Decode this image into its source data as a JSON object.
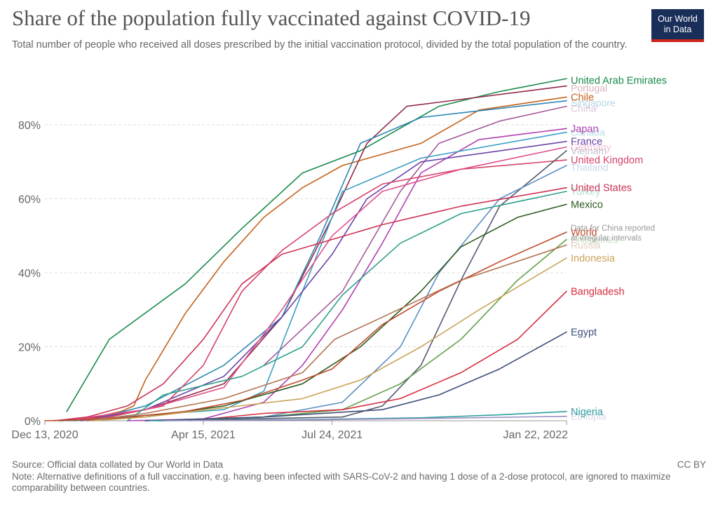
{
  "header": {
    "title": "Share of the population fully vaccinated against COVID-19",
    "subtitle": "Total number of people who received all doses prescribed by the initial vaccination protocol, divided by the total population of the country."
  },
  "logo": {
    "line1": "Our World",
    "line2": "in Data",
    "bg": "#1a2e5a",
    "accent": "#ce261e"
  },
  "footer": {
    "source": "Source: Official data collated by Our World in Data",
    "license": "CC BY",
    "note": "Note: Alternative definitions of a full vaccination, e.g. having been infected with SARS-CoV-2 and having 1 dose of a 2-dose protocol, are ignored to maximize comparability between countries."
  },
  "chart_data": {
    "type": "line",
    "x_axis": {
      "start": "2020-12-13",
      "end": "2022-01-22",
      "ticks": [
        "2020-12-13",
        "2021-04-15",
        "2021-07-24",
        "2022-01-22"
      ],
      "tick_labels": [
        "Dec 13, 2020",
        "Apr 15, 2021",
        "Jul 24, 2021",
        "Jan 22, 2022"
      ]
    },
    "y_axis": {
      "min": 0,
      "max": 80,
      "ticks": [
        0,
        20,
        40,
        60,
        80
      ],
      "tick_labels": [
        "0%",
        "20%",
        "40%",
        "60%",
        "80%"
      ],
      "unit": "%"
    },
    "grid": "horizontal dashed",
    "annotation": {
      "text_line1": "Data for China reported",
      "text_line2": "at irregular intervals",
      "at_value": 51
    },
    "series": [
      {
        "name": "United Arab Emirates",
        "color": "#1a8a4a",
        "label_y": 92,
        "labeled": true,
        "points": [
          [
            "2020-12-30",
            2.5
          ],
          [
            "2021-02-01",
            22
          ],
          [
            "2021-04-01",
            37
          ],
          [
            "2021-05-15",
            52
          ],
          [
            "2021-07-01",
            67
          ],
          [
            "2021-08-15",
            73
          ],
          [
            "2021-10-15",
            85
          ],
          [
            "2021-12-01",
            89
          ],
          [
            "2022-01-22",
            92.5
          ]
        ]
      },
      {
        "name": "Chile",
        "color": "#c4621b",
        "label_y": 87.5,
        "labeled": true,
        "points": [
          [
            "2021-01-15",
            0.5
          ],
          [
            "2021-02-10",
            2.5
          ],
          [
            "2021-02-20",
            4
          ],
          [
            "2021-03-01",
            11
          ],
          [
            "2021-04-01",
            29
          ],
          [
            "2021-05-01",
            43
          ],
          [
            "2021-06-01",
            55
          ],
          [
            "2021-07-01",
            63
          ],
          [
            "2021-08-01",
            69
          ],
          [
            "2021-10-01",
            75
          ],
          [
            "2021-11-15",
            84
          ],
          [
            "2022-01-22",
            87.5
          ]
        ]
      },
      {
        "name": "Portugal",
        "color": "#8f2b48",
        "label_y": 90,
        "labeled": false,
        "points": [
          [
            "2021-01-05",
            0
          ],
          [
            "2021-03-01",
            3
          ],
          [
            "2021-05-01",
            10
          ],
          [
            "2021-06-15",
            28
          ],
          [
            "2021-07-24",
            55
          ],
          [
            "2021-08-20",
            75
          ],
          [
            "2021-09-20",
            85
          ],
          [
            "2022-01-22",
            90.5
          ]
        ]
      },
      {
        "name": "Singapore",
        "color": "#2e86b0",
        "label_y": 86,
        "labeled": false,
        "points": [
          [
            "2021-01-15",
            0
          ],
          [
            "2021-03-01",
            4
          ],
          [
            "2021-05-01",
            15
          ],
          [
            "2021-06-15",
            28
          ],
          [
            "2021-07-15",
            50
          ],
          [
            "2021-08-15",
            75
          ],
          [
            "2021-10-01",
            82
          ],
          [
            "2022-01-22",
            86.5
          ]
        ]
      },
      {
        "name": "China",
        "color": "#a45a9a",
        "label_y": 84.5,
        "labeled": false,
        "points": [
          [
            "2021-06-01",
            15
          ],
          [
            "2021-08-01",
            35
          ],
          [
            "2021-09-15",
            62
          ],
          [
            "2021-10-15",
            75
          ],
          [
            "2021-12-01",
            81
          ],
          [
            "2022-01-22",
            85
          ]
        ]
      },
      {
        "name": "Japan",
        "color": "#b040b0",
        "label_y": 79,
        "labeled": true,
        "points": [
          [
            "2021-02-15",
            0
          ],
          [
            "2021-04-15",
            0.5
          ],
          [
            "2021-06-01",
            5
          ],
          [
            "2021-07-01",
            15
          ],
          [
            "2021-08-01",
            30
          ],
          [
            "2021-09-01",
            48
          ],
          [
            "2021-10-01",
            67
          ],
          [
            "2021-11-15",
            76
          ],
          [
            "2022-01-22",
            79
          ]
        ]
      },
      {
        "name": "Canada",
        "color": "#3c9fc4",
        "label_y": 78,
        "labeled": false,
        "points": [
          [
            "2021-01-01",
            0
          ],
          [
            "2021-05-01",
            3
          ],
          [
            "2021-06-01",
            8
          ],
          [
            "2021-07-01",
            35
          ],
          [
            "2021-08-01",
            62
          ],
          [
            "2021-10-01",
            71
          ],
          [
            "2022-01-22",
            78
          ]
        ]
      },
      {
        "name": "France",
        "color": "#6a44a8",
        "label_y": 75.5,
        "labeled": true,
        "points": [
          [
            "2021-01-10",
            0
          ],
          [
            "2021-03-01",
            3
          ],
          [
            "2021-05-01",
            12
          ],
          [
            "2021-06-15",
            28
          ],
          [
            "2021-07-24",
            45
          ],
          [
            "2021-08-20",
            60
          ],
          [
            "2021-10-01",
            70
          ],
          [
            "2022-01-22",
            75.5
          ]
        ]
      },
      {
        "name": "United Kingdom",
        "color": "#d6426a",
        "label_y": 70.5,
        "labeled": true,
        "points": [
          [
            "2020-12-20",
            0
          ],
          [
            "2021-02-01",
            1
          ],
          [
            "2021-03-15",
            4
          ],
          [
            "2021-04-15",
            15
          ],
          [
            "2021-05-15",
            35
          ],
          [
            "2021-06-15",
            46
          ],
          [
            "2021-07-24",
            56
          ],
          [
            "2021-09-01",
            64
          ],
          [
            "2021-11-01",
            68
          ],
          [
            "2022-01-22",
            70.5
          ]
        ]
      },
      {
        "name": "Vietnam",
        "color": "#555a6e",
        "label_y": 73,
        "labeled": false,
        "points": [
          [
            "2021-03-10",
            0
          ],
          [
            "2021-08-01",
            1
          ],
          [
            "2021-09-01",
            4
          ],
          [
            "2021-10-01",
            15
          ],
          [
            "2021-11-01",
            38
          ],
          [
            "2021-12-01",
            58
          ],
          [
            "2022-01-22",
            73
          ]
        ]
      },
      {
        "name": "Germany",
        "color": "#e04e8a",
        "label_y": 74,
        "labeled": false,
        "points": [
          [
            "2020-12-27",
            0
          ],
          [
            "2021-03-01",
            3
          ],
          [
            "2021-05-01",
            9
          ],
          [
            "2021-06-15",
            30
          ],
          [
            "2021-07-24",
            50
          ],
          [
            "2021-09-01",
            62
          ],
          [
            "2021-11-01",
            68
          ],
          [
            "2022-01-22",
            74
          ]
        ]
      },
      {
        "name": "Turkey",
        "color": "#2ea08c",
        "label_y": 62,
        "labeled": false,
        "points": [
          [
            "2021-02-15",
            0
          ],
          [
            "2021-03-15",
            7
          ],
          [
            "2021-05-15",
            12
          ],
          [
            "2021-07-01",
            20
          ],
          [
            "2021-08-01",
            34
          ],
          [
            "2021-09-15",
            48
          ],
          [
            "2021-11-01",
            56
          ],
          [
            "2022-01-22",
            62
          ]
        ]
      },
      {
        "name": "Thailand",
        "color": "#5b8fc4",
        "label_y": 68.5,
        "labeled": false,
        "points": [
          [
            "2021-03-01",
            0
          ],
          [
            "2021-06-01",
            1
          ],
          [
            "2021-08-01",
            5
          ],
          [
            "2021-09-15",
            20
          ],
          [
            "2021-10-15",
            40
          ],
          [
            "2021-12-01",
            60
          ],
          [
            "2022-01-22",
            69
          ]
        ]
      },
      {
        "name": "United States",
        "color": "#cc3355",
        "label_y": 63,
        "labeled": true,
        "points": [
          [
            "2020-12-20",
            0
          ],
          [
            "2021-01-15",
            1
          ],
          [
            "2021-02-15",
            4
          ],
          [
            "2021-03-15",
            10
          ],
          [
            "2021-04-15",
            22
          ],
          [
            "2021-05-15",
            37
          ],
          [
            "2021-06-15",
            45
          ],
          [
            "2021-07-24",
            49
          ],
          [
            "2021-09-01",
            53
          ],
          [
            "2021-11-01",
            58
          ],
          [
            "2022-01-22",
            63
          ]
        ]
      },
      {
        "name": "Mexico",
        "color": "#2d5a1f",
        "label_y": 58.5,
        "labeled": true,
        "points": [
          [
            "2020-12-24",
            0
          ],
          [
            "2021-03-01",
            1
          ],
          [
            "2021-05-01",
            4
          ],
          [
            "2021-07-01",
            10
          ],
          [
            "2021-08-15",
            20
          ],
          [
            "2021-10-01",
            35
          ],
          [
            "2021-11-01",
            47
          ],
          [
            "2021-12-15",
            55
          ],
          [
            "2022-01-22",
            58.5
          ]
        ]
      },
      {
        "name": "World",
        "color": "#bf4a2a",
        "label_y": 51,
        "labeled": true,
        "points": [
          [
            "2020-12-13",
            0
          ],
          [
            "2021-02-01",
            0.5
          ],
          [
            "2021-04-01",
            2.5
          ],
          [
            "2021-05-15",
            5.5
          ],
          [
            "2021-07-01",
            11
          ],
          [
            "2021-07-24",
            14
          ],
          [
            "2021-09-01",
            26
          ],
          [
            "2021-10-15",
            35
          ],
          [
            "2021-12-01",
            43
          ],
          [
            "2022-01-22",
            51
          ]
        ]
      },
      {
        "name": "Philippines",
        "color": "#63a04a",
        "label_y": 49,
        "labeled": false,
        "points": [
          [
            "2021-03-15",
            0
          ],
          [
            "2021-06-01",
            1
          ],
          [
            "2021-08-01",
            3
          ],
          [
            "2021-09-15",
            10
          ],
          [
            "2021-11-01",
            22
          ],
          [
            "2021-12-15",
            38
          ],
          [
            "2022-01-22",
            49
          ]
        ]
      },
      {
        "name": "Russia",
        "color": "#b07250",
        "label_y": 47.5,
        "labeled": false,
        "points": [
          [
            "2021-01-15",
            0
          ],
          [
            "2021-03-01",
            2
          ],
          [
            "2021-05-01",
            6
          ],
          [
            "2021-07-01",
            13
          ],
          [
            "2021-07-26",
            22
          ],
          [
            "2021-09-01",
            28
          ],
          [
            "2021-11-01",
            38
          ],
          [
            "2022-01-22",
            47.5
          ]
        ]
      },
      {
        "name": "Indonesia",
        "color": "#c9a45a",
        "label_y": 44,
        "labeled": true,
        "points": [
          [
            "2021-01-20",
            0
          ],
          [
            "2021-03-01",
            1
          ],
          [
            "2021-05-01",
            3.5
          ],
          [
            "2021-07-01",
            6
          ],
          [
            "2021-08-15",
            11
          ],
          [
            "2021-10-01",
            20
          ],
          [
            "2021-11-15",
            30
          ],
          [
            "2022-01-22",
            44
          ]
        ]
      },
      {
        "name": "Bangladesh",
        "color": "#d62d3c",
        "label_y": 35,
        "labeled": true,
        "points": [
          [
            "2021-04-05",
            0
          ],
          [
            "2021-06-01",
            2
          ],
          [
            "2021-08-01",
            3
          ],
          [
            "2021-09-15",
            6
          ],
          [
            "2021-11-01",
            13
          ],
          [
            "2021-12-15",
            22
          ],
          [
            "2022-01-22",
            35
          ]
        ]
      },
      {
        "name": "Egypt",
        "color": "#3d4f78",
        "label_y": 24,
        "labeled": true,
        "points": [
          [
            "2021-03-01",
            0
          ],
          [
            "2021-06-01",
            1
          ],
          [
            "2021-09-01",
            3
          ],
          [
            "2021-10-15",
            7
          ],
          [
            "2021-12-01",
            14
          ],
          [
            "2022-01-22",
            24
          ]
        ]
      },
      {
        "name": "Nigeria",
        "color": "#2a9e9e",
        "label_y": 2.5,
        "labeled": true,
        "points": [
          [
            "2021-03-05",
            0
          ],
          [
            "2021-07-01",
            0.3
          ],
          [
            "2021-10-01",
            0.8
          ],
          [
            "2021-12-01",
            1.6
          ],
          [
            "2022-01-22",
            2.5
          ]
        ]
      },
      {
        "name": "Ethiopia",
        "color": "#9d8cc4",
        "label_y": 1.2,
        "labeled": false,
        "points": [
          [
            "2021-03-15",
            0
          ],
          [
            "2021-07-01",
            0.2
          ],
          [
            "2021-10-01",
            0.6
          ],
          [
            "2022-01-22",
            1.2
          ]
        ]
      }
    ]
  }
}
